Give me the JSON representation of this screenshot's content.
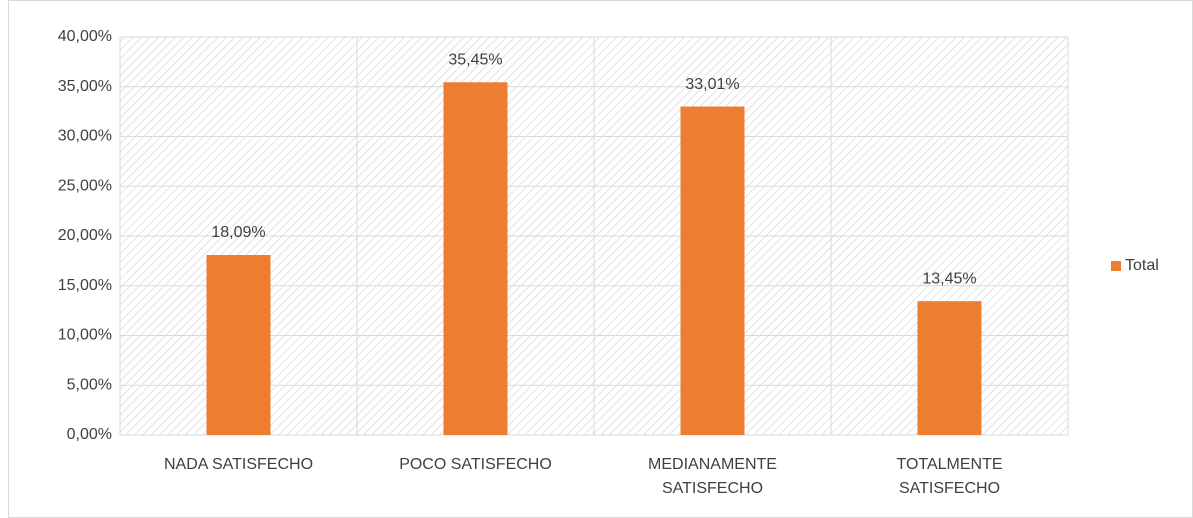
{
  "chart_data": {
    "type": "bar",
    "categories": [
      "NADA SATISFECHO",
      "POCO SATISFECHO",
      "MEDIANAMENTE SATISFECHO",
      "TOTALMENTE SATISFECHO"
    ],
    "series": [
      {
        "name": "Total",
        "color": "#ed7d31",
        "values": [
          18.09,
          35.45,
          33.01,
          13.45
        ],
        "value_labels": [
          "18,09%",
          "35,45%",
          "33,01%",
          "13,45%"
        ]
      }
    ],
    "ylim": [
      0,
      40
    ],
    "yticks": [
      {
        "value": 0,
        "label": "0,00%"
      },
      {
        "value": 5,
        "label": "5,00%"
      },
      {
        "value": 10,
        "label": "10,00%"
      },
      {
        "value": 15,
        "label": "15,00%"
      },
      {
        "value": 20,
        "label": "20,00%"
      },
      {
        "value": 25,
        "label": "25,00%"
      },
      {
        "value": 30,
        "label": "30,00%"
      },
      {
        "value": 35,
        "label": "35,00%"
      },
      {
        "value": 40,
        "label": "40,00%"
      }
    ],
    "grid": true,
    "legend": "right"
  }
}
